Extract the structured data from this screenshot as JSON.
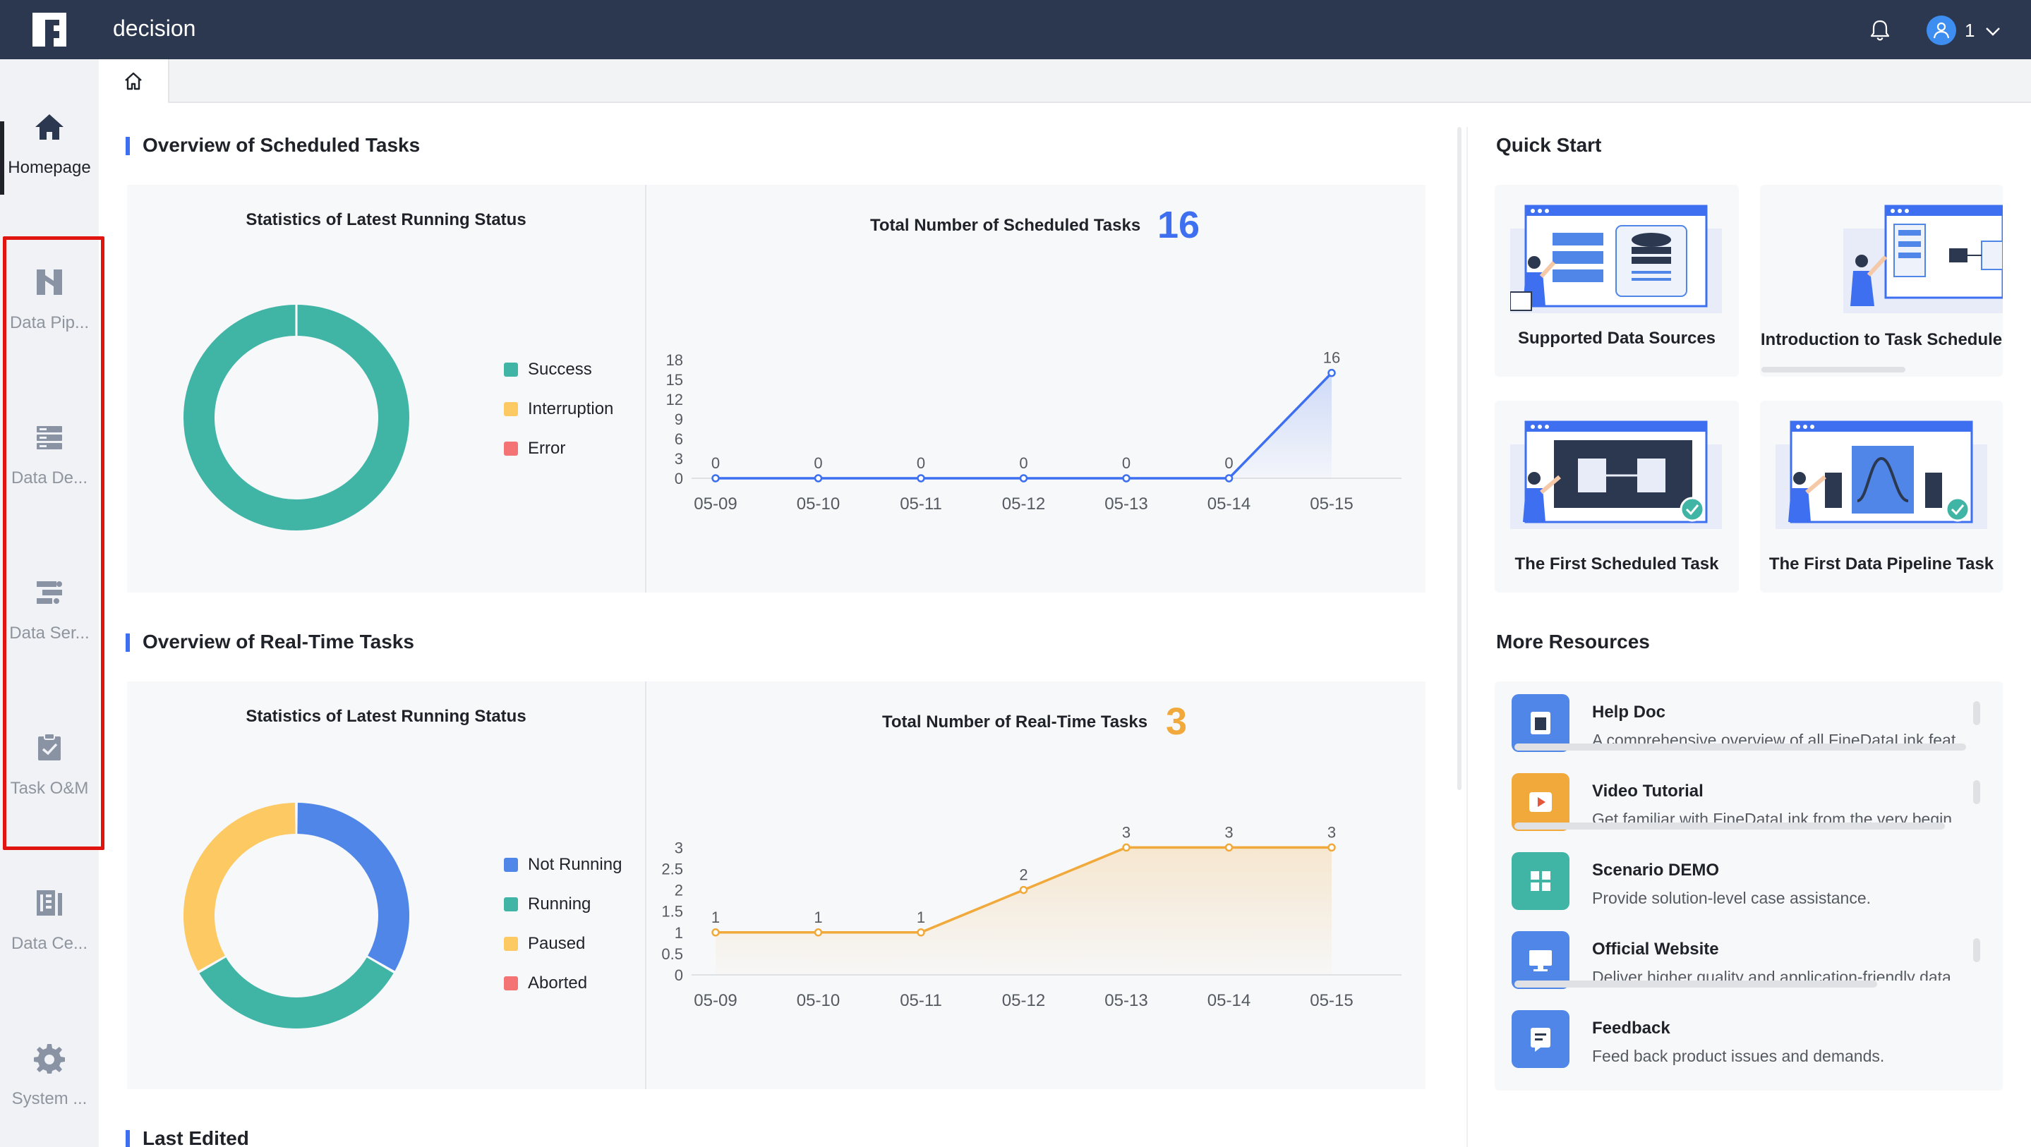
{
  "topbar": {
    "app_title": "decision",
    "user_name": "1",
    "colors": {
      "background": "#2c3850",
      "avatar": "#3d8ef0"
    }
  },
  "sidebar": {
    "items": [
      {
        "label": "Homepage",
        "icon": "home-icon",
        "active": true
      },
      {
        "label": "Data Pip...",
        "icon": "data-pipeline-icon",
        "active": false
      },
      {
        "label": "Data De...",
        "icon": "data-development-icon",
        "active": false
      },
      {
        "label": "Data Ser...",
        "icon": "data-service-icon",
        "active": false
      },
      {
        "label": "Task O&M",
        "icon": "task-om-icon",
        "active": false
      },
      {
        "label": "Data Ce...",
        "icon": "data-center-icon",
        "active": false
      },
      {
        "label": "System ...",
        "icon": "gear-icon",
        "active": false
      }
    ],
    "highlight_color": "#e0150f"
  },
  "tabs": [
    {
      "icon": "home-icon"
    }
  ],
  "scheduled": {
    "section_title": "Overview of Scheduled Tasks",
    "status_title": "Statistics of Latest Running Status",
    "total_title": "Total Number of Scheduled Tasks",
    "total_value": "16",
    "total_color": "#3d6ff0",
    "legend": [
      {
        "label": "Success",
        "color": "#40b5a6"
      },
      {
        "label": "Interruption",
        "color": "#fcc962"
      },
      {
        "label": "Error",
        "color": "#f47375"
      }
    ]
  },
  "realtime": {
    "section_title": "Overview of Real-Time Tasks",
    "status_title": "Statistics of Latest Running Status",
    "total_title": "Total Number of Real-Time Tasks",
    "total_value": "3",
    "total_color": "#f0a93a",
    "legend": [
      {
        "label": "Not Running",
        "color": "#4f86e8"
      },
      {
        "label": "Running",
        "color": "#40b5a6"
      },
      {
        "label": "Paused",
        "color": "#fcc962"
      },
      {
        "label": "Aborted",
        "color": "#f47375"
      }
    ]
  },
  "last_edited": {
    "section_title": "Last Edited"
  },
  "quick_start": {
    "title": "Quick Start",
    "cards": [
      {
        "label": "Supported Data Sources"
      },
      {
        "label": "Introduction to Task Schedule"
      },
      {
        "label": "The First Scheduled Task"
      },
      {
        "label": "The First Data Pipeline Task"
      }
    ]
  },
  "resources": {
    "title": "More Resources",
    "items": [
      {
        "title": "Help Doc",
        "desc": "A comprehensive overview of all FineDataLink feat",
        "icon": "help-doc-icon",
        "color": "#4f86e8"
      },
      {
        "title": "Video Tutorial",
        "desc": "Get familiar with FineDataLink from the very begin",
        "icon": "video-icon",
        "color": "#f0a93a"
      },
      {
        "title": "Scenario DEMO",
        "desc": "Provide solution-level case assistance.",
        "icon": "scenario-demo-icon",
        "color": "#40b5a6"
      },
      {
        "title": "Official Website",
        "desc": "Deliver higher quality and application-friendly data",
        "icon": "website-icon",
        "color": "#4f86e8"
      },
      {
        "title": "Feedback",
        "desc": "Feed back product issues and demands.",
        "icon": "feedback-icon",
        "color": "#4f86e8"
      }
    ]
  },
  "chart_data": [
    {
      "type": "pie",
      "title": "Statistics of Latest Running Status",
      "donut": true,
      "categories": [
        "Success",
        "Interruption",
        "Error"
      ],
      "values": [
        1,
        0,
        0
      ],
      "colors": [
        "#40b5a6",
        "#fcc962",
        "#f47375"
      ],
      "legend_position": "right"
    },
    {
      "type": "area",
      "title": "Total Number of Scheduled Tasks",
      "x": [
        "05-09",
        "05-10",
        "05-11",
        "05-12",
        "05-13",
        "05-14",
        "05-15"
      ],
      "y": [
        0,
        0,
        0,
        0,
        0,
        0,
        16
      ],
      "yticks": [
        0,
        3,
        6,
        9,
        12,
        15,
        18
      ],
      "ylim": [
        0,
        18
      ],
      "color": "#3d6ff0",
      "grid": false
    },
    {
      "type": "pie",
      "title": "Statistics of Latest Running Status",
      "donut": true,
      "categories": [
        "Not Running",
        "Running",
        "Paused",
        "Aborted"
      ],
      "values": [
        1,
        1,
        1,
        0
      ],
      "colors": [
        "#4f86e8",
        "#40b5a6",
        "#fcc962",
        "#f47375"
      ],
      "legend_position": "right"
    },
    {
      "type": "area",
      "title": "Total Number of Real-Time Tasks",
      "x": [
        "05-09",
        "05-10",
        "05-11",
        "05-12",
        "05-13",
        "05-14",
        "05-15"
      ],
      "y": [
        1,
        1,
        1,
        2,
        3,
        3,
        3
      ],
      "yticks": [
        0,
        0.5,
        1,
        1.5,
        2,
        2.5,
        3
      ],
      "ylim": [
        0,
        3
      ],
      "color": "#f0a93a",
      "grid": false
    }
  ]
}
